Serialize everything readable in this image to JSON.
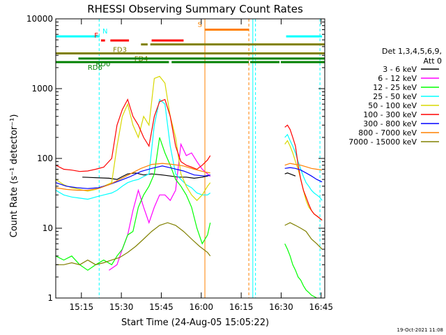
{
  "page": {
    "footer_timestamp": "19-Oct-2021 11:08"
  },
  "chart_data": {
    "type": "line",
    "title": "RHESSI Observing Summary Count Rates",
    "xlabel": "Start Time (24-Aug-05 15:05:22)",
    "ylabel": "Count Rate (s⁻¹ detector⁻¹)",
    "y_scale": "log",
    "x_unit": "minutes after 15:05:22 UT",
    "xlim": [
      0,
      101
    ],
    "ylim": [
      1,
      10000
    ],
    "grid": false,
    "legend_position": "right",
    "x_ticks": [
      {
        "value": 9.63,
        "label": "15:15"
      },
      {
        "value": 24.63,
        "label": "15:30"
      },
      {
        "value": 39.63,
        "label": "15:45"
      },
      {
        "value": 54.63,
        "label": "16:00"
      },
      {
        "value": 69.63,
        "label": "16:15"
      },
      {
        "value": 84.63,
        "label": "16:30"
      },
      {
        "value": 99.63,
        "label": "16:45"
      }
    ],
    "y_ticks": [
      {
        "value": 1,
        "label": "1"
      },
      {
        "value": 10,
        "label": "10"
      },
      {
        "value": 100,
        "label": "100"
      },
      {
        "value": 1000,
        "label": "1000"
      },
      {
        "value": 10000,
        "label": "10000"
      }
    ],
    "legend_header": [
      "Det 1,3,4,5,6,9,",
      "Att 0"
    ],
    "series": [
      {
        "name": "3 - 6 keV",
        "color": "#000000",
        "x": [
          10,
          20,
          23,
          25,
          27,
          30,
          33,
          36,
          40,
          43,
          46,
          49,
          52,
          55,
          57,
          58,
          86,
          87,
          88,
          89,
          90
        ],
        "y": [
          54,
          52,
          50,
          55,
          60,
          62,
          58,
          60,
          58,
          56,
          54,
          54,
          52,
          54,
          56,
          58,
          60,
          62,
          60,
          58,
          56
        ]
      },
      {
        "name": "6 - 12 keV",
        "color": "#ff00ff",
        "x": [
          20,
          23,
          25,
          27,
          29,
          31,
          33,
          35,
          37,
          39,
          41,
          43,
          45,
          47,
          49,
          51,
          53,
          55,
          57,
          58
        ],
        "y": [
          2.5,
          3,
          5,
          8,
          18,
          35,
          20,
          12,
          20,
          30,
          30,
          25,
          35,
          160,
          110,
          120,
          90,
          70,
          60,
          55
        ]
      },
      {
        "name": "12 - 25 keV",
        "color": "#00ff00",
        "x": [
          0,
          3,
          6,
          9,
          12,
          15,
          18,
          21,
          23,
          25,
          27,
          29,
          31,
          33,
          35,
          37,
          39,
          41,
          43,
          45,
          47,
          49,
          51,
          53,
          55,
          57,
          58,
          86,
          87,
          88,
          89,
          90,
          91,
          92,
          93,
          94,
          95,
          96,
          97,
          98
        ],
        "y": [
          4,
          3.5,
          4,
          3,
          2.5,
          3,
          3.5,
          3,
          4,
          5,
          8,
          9,
          20,
          30,
          40,
          60,
          200,
          120,
          80,
          50,
          40,
          30,
          20,
          10,
          6,
          8,
          12,
          6,
          5,
          4,
          3,
          2.5,
          2,
          1.8,
          1.5,
          1.3,
          1.2,
          1.1,
          1.05,
          1
        ]
      },
      {
        "name": "25 - 50 keV",
        "color": "#00ffff",
        "x": [
          0,
          3,
          6,
          9,
          12,
          15,
          18,
          21,
          23,
          25,
          27,
          29,
          31,
          33,
          35,
          37,
          39,
          41,
          43,
          45,
          47,
          49,
          51,
          53,
          55,
          57,
          58,
          86,
          87,
          88,
          89,
          90,
          91,
          92,
          93,
          94,
          95,
          96,
          97,
          98,
          99,
          100
        ],
        "y": [
          35,
          30,
          28,
          27,
          26,
          28,
          30,
          32,
          35,
          40,
          45,
          48,
          50,
          55,
          60,
          300,
          700,
          600,
          150,
          60,
          50,
          42,
          38,
          32,
          30,
          30,
          32,
          200,
          220,
          180,
          150,
          120,
          90,
          70,
          55,
          45,
          40,
          35,
          32,
          30,
          28,
          25
        ]
      },
      {
        "name": "50 - 100 keV",
        "color": "#d8d800",
        "x": [
          0,
          3,
          6,
          9,
          12,
          15,
          18,
          21,
          23,
          25,
          27,
          29,
          31,
          33,
          35,
          37,
          39,
          41,
          43,
          45,
          47,
          49,
          51,
          53,
          55,
          57,
          58,
          86,
          87,
          88,
          89,
          90,
          91,
          92,
          93,
          94,
          95,
          96,
          97,
          98,
          99,
          100
        ],
        "y": [
          50,
          42,
          38,
          36,
          34,
          36,
          40,
          45,
          150,
          400,
          600,
          300,
          200,
          400,
          300,
          1400,
          1500,
          1200,
          400,
          200,
          60,
          40,
          30,
          25,
          30,
          40,
          45,
          160,
          180,
          150,
          120,
          90,
          70,
          50,
          35,
          25,
          20,
          18,
          16,
          15,
          14,
          13
        ]
      },
      {
        "name": "100 - 300 keV",
        "color": "#ff0000",
        "x": [
          0,
          3,
          6,
          9,
          12,
          15,
          18,
          21,
          23,
          25,
          27,
          29,
          31,
          33,
          35,
          37,
          39,
          41,
          43,
          45,
          47,
          49,
          51,
          53,
          55,
          57,
          58,
          86,
          87,
          88,
          89,
          90,
          91,
          92,
          93,
          94,
          95,
          96,
          97,
          98,
          99,
          100
        ],
        "y": [
          80,
          70,
          68,
          65,
          66,
          70,
          75,
          100,
          300,
          500,
          700,
          400,
          300,
          200,
          150,
          400,
          650,
          700,
          400,
          150,
          90,
          80,
          75,
          70,
          80,
          95,
          110,
          280,
          300,
          260,
          200,
          150,
          80,
          50,
          35,
          28,
          22,
          18,
          16,
          15,
          14,
          13
        ]
      },
      {
        "name": "300 - 800 keV",
        "color": "#0000ff",
        "x": [
          0,
          4,
          8,
          12,
          16,
          20,
          24,
          28,
          32,
          36,
          40,
          44,
          48,
          52,
          56,
          58,
          86,
          88,
          90,
          92,
          94,
          96,
          98,
          100
        ],
        "y": [
          45,
          40,
          38,
          37,
          38,
          42,
          48,
          55,
          65,
          72,
          78,
          72,
          66,
          58,
          56,
          58,
          72,
          74,
          72,
          68,
          62,
          56,
          50,
          46
        ]
      },
      {
        "name": "800 - 7000 keV",
        "color": "#ff8000",
        "x": [
          0,
          4,
          8,
          12,
          16,
          20,
          24,
          28,
          32,
          36,
          40,
          44,
          48,
          52,
          56,
          58,
          86,
          88,
          90,
          92,
          94,
          96,
          98,
          100
        ],
        "y": [
          38,
          36,
          35,
          35,
          37,
          42,
          50,
          60,
          72,
          82,
          85,
          82,
          78,
          70,
          64,
          62,
          80,
          85,
          82,
          80,
          76,
          72,
          70,
          68
        ]
      },
      {
        "name": "7000 - 15000 keV",
        "color": "#808000",
        "x": [
          0,
          3,
          6,
          9,
          12,
          15,
          18,
          21,
          24,
          27,
          30,
          33,
          36,
          39,
          42,
          45,
          48,
          51,
          54,
          57,
          58,
          86,
          88,
          90,
          92,
          94,
          96,
          98,
          100
        ],
        "y": [
          3,
          3,
          3.2,
          3,
          3.5,
          3,
          3.2,
          3.5,
          3.8,
          4.5,
          5.5,
          7,
          9,
          11,
          12,
          11,
          9,
          7,
          5.5,
          4.5,
          4,
          11,
          12,
          11,
          10,
          9,
          7,
          6,
          5
        ]
      }
    ],
    "annotations": {
      "flag_bars": [
        {
          "label": "N",
          "color": "#00ffff",
          "value": 5600,
          "segments": [
            [
              0,
              16.5
            ],
            [
              86.5,
              100
            ]
          ]
        },
        {
          "label": "F",
          "color": "#ff0000",
          "value": 4900,
          "segments": [
            [
              17,
              18.5
            ],
            [
              20.5,
              27.5
            ],
            [
              36,
              48
            ]
          ]
        },
        {
          "label": "FD3",
          "color": "#808000",
          "value": 4300,
          "segments": [
            [
              32,
              34.5
            ],
            [
              35.5,
              101
            ]
          ]
        },
        {
          "label": "FD4",
          "color": "#808000",
          "value": 3200,
          "segments": [
            [
              0,
              30
            ],
            [
              30,
              101
            ]
          ]
        },
        {
          "label": "RD0",
          "color": "#008000",
          "value": 2700,
          "segments": [
            [
              8.5,
              101
            ]
          ]
        },
        {
          "label": "RD6",
          "color": "#008000",
          "value": 2400,
          "segments": [
            [
              0,
              42.5
            ],
            [
              43.5,
              72.5
            ],
            [
              73,
              84
            ],
            [
              84.5,
              101
            ]
          ]
        },
        {
          "label": "S",
          "color": "#ff8000",
          "value": 7000,
          "segments": [
            [
              56,
              72.5
            ]
          ]
        }
      ],
      "vlines": [
        {
          "x": 16.3,
          "color": "#00ffff",
          "style": "dashed"
        },
        {
          "x": 56,
          "color": "#ff8000",
          "style": "solid"
        },
        {
          "x": 72.5,
          "color": "#ff8000",
          "style": "dashed"
        },
        {
          "x": 74,
          "color": "#00ffff",
          "style": "solid"
        },
        {
          "x": 75,
          "color": "#00ffff",
          "style": "dashed"
        },
        {
          "x": 99.2,
          "color": "#00ffff",
          "style": "dashed"
        }
      ]
    }
  }
}
